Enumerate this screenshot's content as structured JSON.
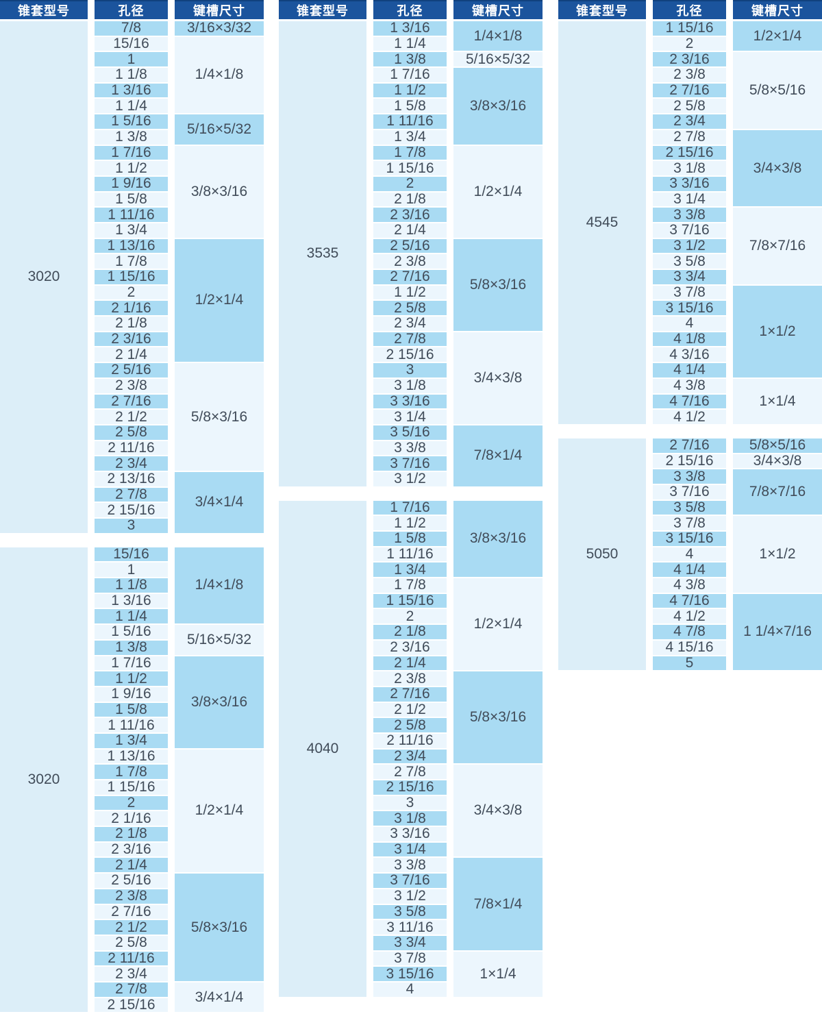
{
  "header": {
    "columns": [
      {
        "key": "model",
        "label": "锥套型号"
      },
      {
        "key": "bore",
        "label": "孔径"
      },
      {
        "key": "keyway",
        "label": "键槽尺寸"
      }
    ]
  },
  "colors": {
    "page_bg": "#ffffff",
    "header_bg": "#1b549d",
    "header_border": "#11417e",
    "header_text": "#ffffff",
    "stripe_dark": "#a9dbf3",
    "stripe_light": "#ecf6fd",
    "panel": "#dceef8",
    "text": "#414c59"
  },
  "columns": [
    {
      "tables": [
        {
          "model": "3020",
          "groups": [
            {
              "keyway": "3/16×3/32",
              "bores": [
                "7/8"
              ]
            },
            {
              "keyway": "1/4×1/8",
              "bores": [
                "15/16",
                "1",
                "1 1/8",
                "1 3/16",
                "1 1/4"
              ]
            },
            {
              "keyway": "5/16×5/32",
              "bores": [
                "1 5/16",
                "1 3/8"
              ]
            },
            {
              "keyway": "3/8×3/16",
              "bores": [
                "1 7/16",
                "1 1/2",
                "1 9/16",
                "1 5/8",
                "1 11/16",
                "1 3/4"
              ]
            },
            {
              "keyway": "1/2×1/4",
              "bores": [
                "1 13/16",
                "1 7/8",
                "1 15/16",
                "2",
                "2 1/16",
                "2 1/8",
                "2 3/16",
                "2 1/4"
              ]
            },
            {
              "keyway": "5/8×3/16",
              "bores": [
                "2 5/16",
                "2 3/8",
                "2 7/16",
                "2 1/2",
                "2 5/8",
                "2 11/16",
                "2 3/4"
              ]
            },
            {
              "keyway": "3/4×1/4",
              "bores": [
                "2 13/16",
                "2 7/8",
                "2 15/16",
                "3"
              ]
            }
          ]
        },
        {
          "model": "3020",
          "groups": [
            {
              "keyway": "1/4×1/8",
              "bores": [
                "15/16",
                "1",
                "1 1/8",
                "1 3/16",
                "1 1/4"
              ]
            },
            {
              "keyway": "5/16×5/32",
              "bores": [
                "1 5/16",
                "1 3/8"
              ]
            },
            {
              "keyway": "3/8×3/16",
              "bores": [
                "1 7/16",
                "1 1/2",
                "1 9/16",
                "1 5/8",
                "1 11/16",
                "1 3/4"
              ]
            },
            {
              "keyway": "1/2×1/4",
              "bores": [
                "1 13/16",
                "1 7/8",
                "1 15/16",
                "2",
                "2 1/16",
                "2 1/8",
                "2 3/16",
                "2 1/4"
              ]
            },
            {
              "keyway": "5/8×3/16",
              "bores": [
                "2 5/16",
                "2 3/8",
                "2 7/16",
                "2 1/2",
                "2 5/8",
                "2 11/16",
                "2 3/4"
              ]
            },
            {
              "keyway": "3/4×1/4",
              "bores": [
                "2 7/8",
                "2 15/16"
              ]
            }
          ]
        }
      ]
    },
    {
      "tables": [
        {
          "model": "3535",
          "groups": [
            {
              "keyway": "1/4×1/8",
              "bores": [
                "1 3/16",
                "1 1/4"
              ]
            },
            {
              "keyway": "5/16×5/32",
              "bores": [
                "1 3/8"
              ]
            },
            {
              "keyway": "3/8×3/16",
              "bores": [
                "1 7/16",
                "1 1/2",
                "1 5/8",
                "1 11/16",
                "1 3/4"
              ]
            },
            {
              "keyway": "1/2×1/4",
              "bores": [
                "1 7/8",
                "1 15/16",
                "2",
                "2 1/8",
                "2 3/16",
                "2 1/4"
              ]
            },
            {
              "keyway": "5/8×3/16",
              "bores": [
                "2 5/16",
                "2 3/8",
                "2 7/16",
                "1 1/2",
                "2 5/8",
                "2 3/4"
              ]
            },
            {
              "keyway": "3/4×3/8",
              "bores": [
                "2 7/8",
                "2 15/16",
                "3",
                "3 1/8",
                "3 3/16",
                "3 1/4"
              ]
            },
            {
              "keyway": "7/8×1/4",
              "bores": [
                "3 5/16",
                "3 3/8",
                "3 7/16",
                "3 1/2"
              ]
            }
          ]
        },
        {
          "model": "4040",
          "groups": [
            {
              "keyway": "3/8×3/16",
              "bores": [
                "1 7/16",
                "1 1/2",
                "1 5/8",
                "1 11/16",
                "1 3/4"
              ]
            },
            {
              "keyway": "1/2×1/4",
              "bores": [
                "1 7/8",
                "1 15/16",
                "2",
                "2 1/8",
                "2 3/16",
                "2 1/4"
              ]
            },
            {
              "keyway": "5/8×3/16",
              "bores": [
                "2 3/8",
                "2 7/16",
                "2 1/2",
                "2 5/8",
                "2 11/16",
                "2 3/4"
              ]
            },
            {
              "keyway": "3/4×3/8",
              "bores": [
                "2 7/8",
                "2 15/16",
                "3",
                "3 1/8",
                "3 3/16",
                "3 1/4"
              ]
            },
            {
              "keyway": "7/8×1/4",
              "bores": [
                "3 3/8",
                "3 7/16",
                "3 1/2",
                "3 5/8",
                "3 11/16",
                "3 3/4"
              ]
            },
            {
              "keyway": "1×1/4",
              "bores": [
                "3 7/8",
                "3 15/16",
                "4"
              ]
            }
          ]
        }
      ]
    },
    {
      "tables": [
        {
          "model": "4545",
          "groups": [
            {
              "keyway": "1/2×1/4",
              "bores": [
                "1 15/16",
                "2"
              ]
            },
            {
              "keyway": "5/8×5/16",
              "bores": [
                "2 3/16",
                "2 3/8",
                "2 7/16",
                "2 5/8",
                "2 3/4"
              ]
            },
            {
              "keyway": "3/4×3/8",
              "bores": [
                "2 7/8",
                "2 15/16",
                "3 1/8",
                "3 3/16",
                "3 1/4"
              ]
            },
            {
              "keyway": "7/8×7/16",
              "bores": [
                "3 3/8",
                "3 7/16",
                "3 1/2",
                "3 5/8",
                "3 3/4"
              ]
            },
            {
              "keyway": "1×1/2",
              "bores": [
                "3 7/8",
                "3 15/16",
                "4",
                "4 1/8",
                "4 3/16",
                "4 1/4"
              ]
            },
            {
              "keyway": "1×1/4",
              "bores": [
                "4 3/8",
                "4 7/16",
                "4 1/2"
              ]
            }
          ]
        },
        {
          "model": "5050",
          "groups": [
            {
              "keyway": "5/8×5/16",
              "bores": [
                "2 7/16"
              ]
            },
            {
              "keyway": "3/4×3/8",
              "bores": [
                "2 15/16"
              ]
            },
            {
              "keyway": "7/8×7/16",
              "bores": [
                "3 3/8",
                "3 7/16",
                "3 5/8"
              ]
            },
            {
              "keyway": "1×1/2",
              "bores": [
                "3 7/8",
                "3 15/16",
                "4",
                "4 1/4",
                "4 3/8"
              ]
            },
            {
              "keyway": "1 1/4×7/16",
              "bores": [
                "4 7/16",
                "4 1/2",
                "4 7/8",
                "4 15/16",
                "5"
              ]
            }
          ]
        }
      ]
    }
  ]
}
